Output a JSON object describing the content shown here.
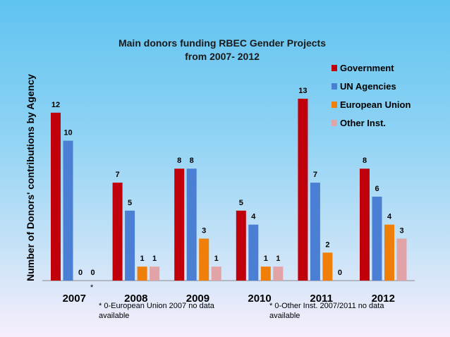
{
  "chart_data": {
    "type": "bar",
    "title_lines": [
      "Main donors funding RBEC Gender Projects",
      "from 2007- 2012"
    ],
    "xlabel": "",
    "ylabel": "Number of Donors' contributions by Agency",
    "ylim": [
      0,
      13
    ],
    "grid": false,
    "legend_position": "top-right",
    "categories": [
      "2007",
      "2008",
      "2009",
      "2010",
      "2011",
      "2012"
    ],
    "series": [
      {
        "name": "Government",
        "color": "#c0000b",
        "values": [
          12,
          7,
          8,
          5,
          13,
          8
        ]
      },
      {
        "name": "UN Agencies",
        "color": "#4a7fd4",
        "values": [
          10,
          5,
          8,
          4,
          7,
          6
        ]
      },
      {
        "name": "European Union",
        "color": "#f07f09",
        "values": [
          0,
          1,
          3,
          1,
          2,
          4
        ]
      },
      {
        "name": "Other Inst.",
        "color": "#e2a3a6",
        "values": [
          0,
          1,
          1,
          1,
          0,
          3
        ]
      }
    ],
    "data_labels": [
      [
        "12",
        "10",
        "0",
        "0"
      ],
      [
        "7",
        "5",
        "1",
        "1"
      ],
      [
        "8",
        "8",
        "3",
        "1"
      ],
      [
        "5",
        "4",
        "1",
        "1"
      ],
      [
        "13",
        "7",
        "2",
        "0"
      ],
      [
        "8",
        "6",
        "4",
        "3"
      ]
    ],
    "annotations": {
      "asterisk": "*",
      "note_left": [
        "* 0-European Union 2007 no data",
        "available"
      ],
      "note_right": [
        "* 0-Other Inst. 2007/2011 no data",
        "available"
      ]
    }
  }
}
